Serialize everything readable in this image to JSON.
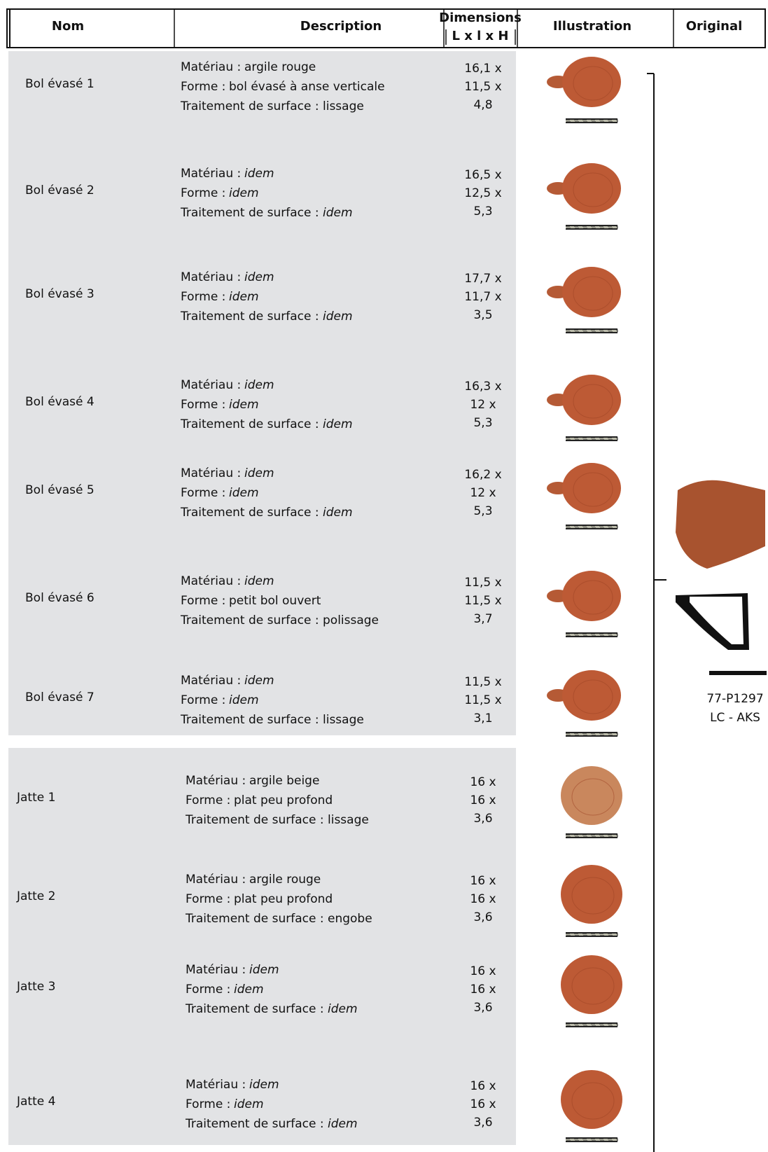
{
  "header": {
    "columns": [
      "Nom",
      "Description",
      "Dimensions",
      "Illustration",
      "Original"
    ],
    "dimensions_sub": "L x l x H"
  },
  "rows": [
    {
      "name": "Bol évasé 1",
      "description": [
        {
          "label": "Matériau :",
          "value": "argile rouge"
        },
        {
          "label": "Forme :",
          "value": "bol évasé à anse verticale"
        },
        {
          "label": "Traitement de surface :",
          "value": "lissage"
        }
      ],
      "dimensions": [
        "16,1 x",
        "11,5 x",
        "4,8"
      ]
    },
    {
      "name": "Bol évasé 2",
      "description": [
        {
          "label": "Matériau :",
          "value": "idem",
          "style": "italic"
        },
        {
          "label": "Forme :",
          "value": "idem",
          "style": "italic"
        },
        {
          "label": "Traitement de surface :",
          "value": "idem",
          "style": "italic"
        }
      ],
      "dimensions": [
        "16,5 x",
        "12,5 x",
        "5,3"
      ]
    },
    {
      "name": "Bol évasé 3",
      "description": [
        {
          "label": "Matériau :",
          "value": "idem",
          "style": "italic"
        },
        {
          "label": "Forme :",
          "value": "idem",
          "style": "italic"
        },
        {
          "label": "Traitement de surface :",
          "value": "idem",
          "style": "italic"
        }
      ],
      "dimensions": [
        "17,7 x",
        "11,7 x",
        "3,5"
      ]
    },
    {
      "name": "Bol évasé 4",
      "description": [
        {
          "label": "Matériau :",
          "value": "idem",
          "style": "italic"
        },
        {
          "label": "Forme :",
          "value": "idem",
          "style": "italic"
        },
        {
          "label": "Traitement de surface :",
          "value": "idem",
          "style": "italic"
        }
      ],
      "dimensions": [
        "16,3 x",
        "12 x",
        "5,3"
      ]
    },
    {
      "name": "Bol évasé 5",
      "description": [
        {
          "label": "Matériau :",
          "value": "idem",
          "style": "italic"
        },
        {
          "label": "Forme :",
          "value": "idem",
          "style": "italic"
        },
        {
          "label": "Traitement de surface :",
          "value": "idem",
          "style": "italic"
        }
      ],
      "dimensions": [
        "16,2 x",
        "12 x",
        "5,3"
      ]
    },
    {
      "name": "Bol évasé 6",
      "description": [
        {
          "label": "Matériau :",
          "value": "idem",
          "style": "italic"
        },
        {
          "label": "Forme :",
          "value": "petit bol ouvert"
        },
        {
          "label": "Traitement de surface :",
          "value": "polissage"
        }
      ],
      "dimensions": [
        "11,5 x",
        "11,5 x",
        "3,7"
      ]
    },
    {
      "name": "Bol évasé 7",
      "description": [
        {
          "label": "Matériau :",
          "value": "idem",
          "style": "italic"
        },
        {
          "label": "Forme :",
          "value": "idem",
          "style": "italic"
        },
        {
          "label": "Traitement de surface :",
          "value": "lissage"
        }
      ],
      "dimensions": [
        "11,5 x",
        "11,5 x",
        "3,1"
      ]
    },
    {
      "name": "Jatte 1",
      "description": [
        {
          "label": "Matériau :",
          "value": "argile beige"
        },
        {
          "label": "Forme :",
          "value": "plat peu profond"
        },
        {
          "label": "Traitement de surface :",
          "value": "lissage"
        }
      ],
      "dimensions": [
        "16 x",
        "16 x",
        "3,6"
      ]
    },
    {
      "name": "Jatte 2",
      "description": [
        {
          "label": "Matériau :",
          "value": "argile rouge"
        },
        {
          "label": "Forme :",
          "value": "plat peu profond"
        },
        {
          "label": "Traitement de surface :",
          "value": "engobe"
        }
      ],
      "dimensions": [
        "16 x",
        "16 x",
        "3,6"
      ]
    },
    {
      "name": "Jatte 3",
      "description": [
        {
          "label": "Matériau :",
          "value": "idem",
          "style": "italic"
        },
        {
          "label": "Forme :",
          "value": "idem",
          "style": "italic"
        },
        {
          "label": "Traitement de surface :",
          "value": "idem",
          "style": "italic"
        }
      ],
      "dimensions": [
        "16 x",
        "16 x",
        "3,6"
      ]
    },
    {
      "name": "Jatte 4",
      "description": [
        {
          "label": "Matériau :",
          "value": "idem",
          "style": "italic"
        },
        {
          "label": "Forme :",
          "value": "idem",
          "style": "italic"
        },
        {
          "label": "Traitement de surface :",
          "value": "idem",
          "style": "italic"
        }
      ],
      "dimensions": [
        "16 x",
        "16 x",
        "3,6"
      ]
    }
  ],
  "original": {
    "reference": "77-P1297",
    "site": "LC - AKS"
  }
}
